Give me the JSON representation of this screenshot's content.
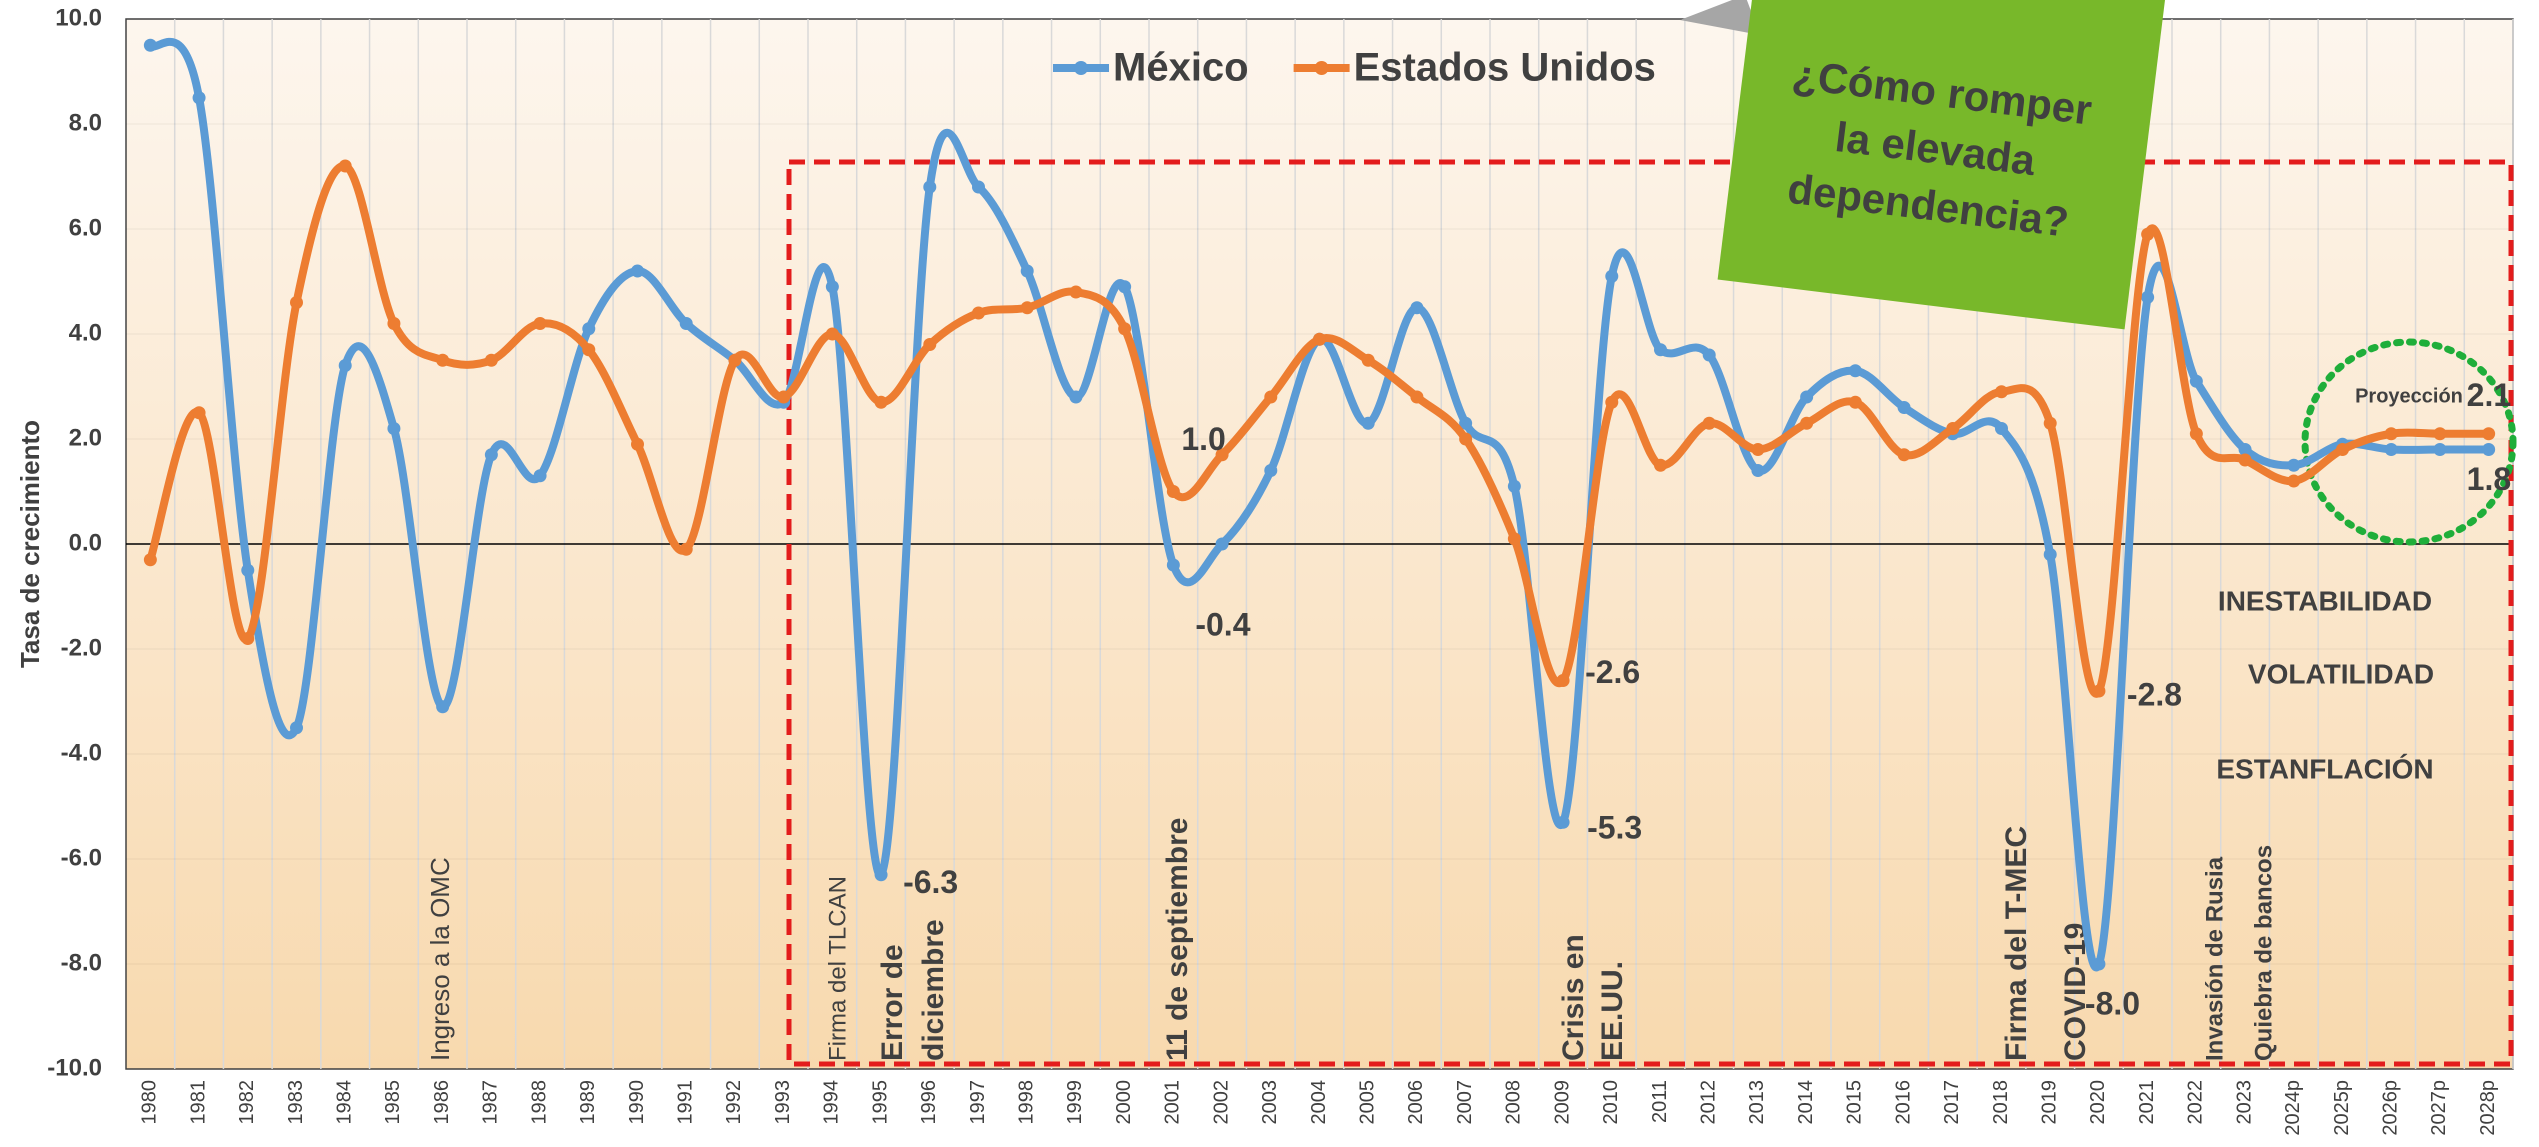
{
  "chart_data": {
    "type": "line",
    "y_axis_label": "Tasa de crecimiento",
    "categories": [
      "1980",
      "1981",
      "1982",
      "1983",
      "1984",
      "1985",
      "1986",
      "1987",
      "1988",
      "1989",
      "1990",
      "1991",
      "1992",
      "1993",
      "1994",
      "1995",
      "1996",
      "1997",
      "1998",
      "1999",
      "2000",
      "2001",
      "2002",
      "2003",
      "2004",
      "2005",
      "2006",
      "2007",
      "2008",
      "2009",
      "2010",
      "2011",
      "2012",
      "2013",
      "2014",
      "2015",
      "2016",
      "2017",
      "2018",
      "2019",
      "2020",
      "2021",
      "2022",
      "2023",
      "2024p",
      "2025p",
      "2026p",
      "2027p",
      "2028p"
    ],
    "series": [
      {
        "name": "México",
        "color": "#5b9bd5",
        "values": [
          9.5,
          8.5,
          -0.5,
          -3.5,
          3.4,
          2.2,
          -3.1,
          1.7,
          1.3,
          4.1,
          5.2,
          4.2,
          3.5,
          2.7,
          4.9,
          -6.3,
          6.8,
          6.8,
          5.2,
          2.8,
          4.9,
          -0.4,
          0.0,
          1.4,
          3.9,
          2.3,
          4.5,
          2.3,
          1.1,
          -5.3,
          5.1,
          3.7,
          3.6,
          1.4,
          2.8,
          3.3,
          2.6,
          2.1,
          2.2,
          -0.2,
          -8.0,
          4.7,
          3.1,
          1.8,
          1.5,
          1.9,
          1.8,
          1.8,
          1.8
        ],
        "value_labels": [
          null,
          null,
          null,
          null,
          null,
          null,
          null,
          null,
          null,
          null,
          null,
          null,
          null,
          null,
          null,
          "-6.3",
          null,
          null,
          null,
          null,
          null,
          "-0.4",
          null,
          null,
          null,
          null,
          null,
          null,
          null,
          "-5.3",
          null,
          null,
          null,
          null,
          null,
          null,
          null,
          null,
          null,
          null,
          "-8.0",
          null,
          null,
          null,
          null,
          null,
          null,
          null,
          "1.8"
        ]
      },
      {
        "name": "Estados Unidos",
        "color": "#ed7d31",
        "values": [
          -0.3,
          2.5,
          -1.8,
          4.6,
          7.2,
          4.2,
          3.5,
          3.5,
          4.2,
          3.7,
          1.9,
          -0.1,
          3.5,
          2.8,
          4.0,
          2.7,
          3.8,
          4.4,
          4.5,
          4.8,
          4.1,
          1.0,
          1.7,
          2.8,
          3.9,
          3.5,
          2.8,
          2.0,
          0.1,
          -2.6,
          2.7,
          1.5,
          2.3,
          1.8,
          2.3,
          2.7,
          1.7,
          2.2,
          2.9,
          2.3,
          -2.8,
          5.9,
          2.1,
          1.6,
          1.2,
          1.8,
          2.1,
          2.1,
          2.1
        ],
        "value_labels": [
          null,
          null,
          null,
          null,
          null,
          null,
          null,
          null,
          null,
          null,
          null,
          null,
          null,
          null,
          null,
          null,
          null,
          null,
          null,
          null,
          null,
          "1.0",
          null,
          null,
          null,
          null,
          null,
          null,
          null,
          "-2.6",
          null,
          null,
          null,
          null,
          null,
          null,
          null,
          null,
          null,
          null,
          "-2.8",
          null,
          null,
          null,
          null,
          null,
          null,
          null,
          "2.1"
        ]
      }
    ],
    "ylim": [
      -10,
      10
    ],
    "yticks": [
      {
        "value": -10,
        "label": "-10.0"
      },
      {
        "value": -8,
        "label": "-8.0"
      },
      {
        "value": -6,
        "label": "-6.0"
      },
      {
        "value": -4,
        "label": "-4.0"
      },
      {
        "value": -2,
        "label": "-2.0"
      },
      {
        "value": 0,
        "label": "0.0"
      },
      {
        "value": 2,
        "label": "2.0"
      },
      {
        "value": 4,
        "label": "4.0"
      },
      {
        "value": 6,
        "label": "6.0"
      },
      {
        "value": 8,
        "label": "8.0"
      },
      {
        "value": 10,
        "label": "10.0"
      }
    ],
    "grid": true,
    "legend": "top",
    "events": [
      "Ingreso a la OMC",
      "Firma del TLCAN",
      "Error de",
      "diciembre",
      "11 de septiembre",
      "Crisis en",
      "EE.UU.",
      "Firma del T-MEC",
      "COVID-19",
      "Invasión de Rusia",
      "Quiebra de bancos"
    ],
    "notes": [
      "INESTABILIDAD",
      "VOLATILIDAD",
      "ESTANFLACIÓN"
    ],
    "projection_label": "Proyección",
    "callout": [
      "¿Cómo romper",
      "la elevada",
      "dependencia?"
    ]
  }
}
